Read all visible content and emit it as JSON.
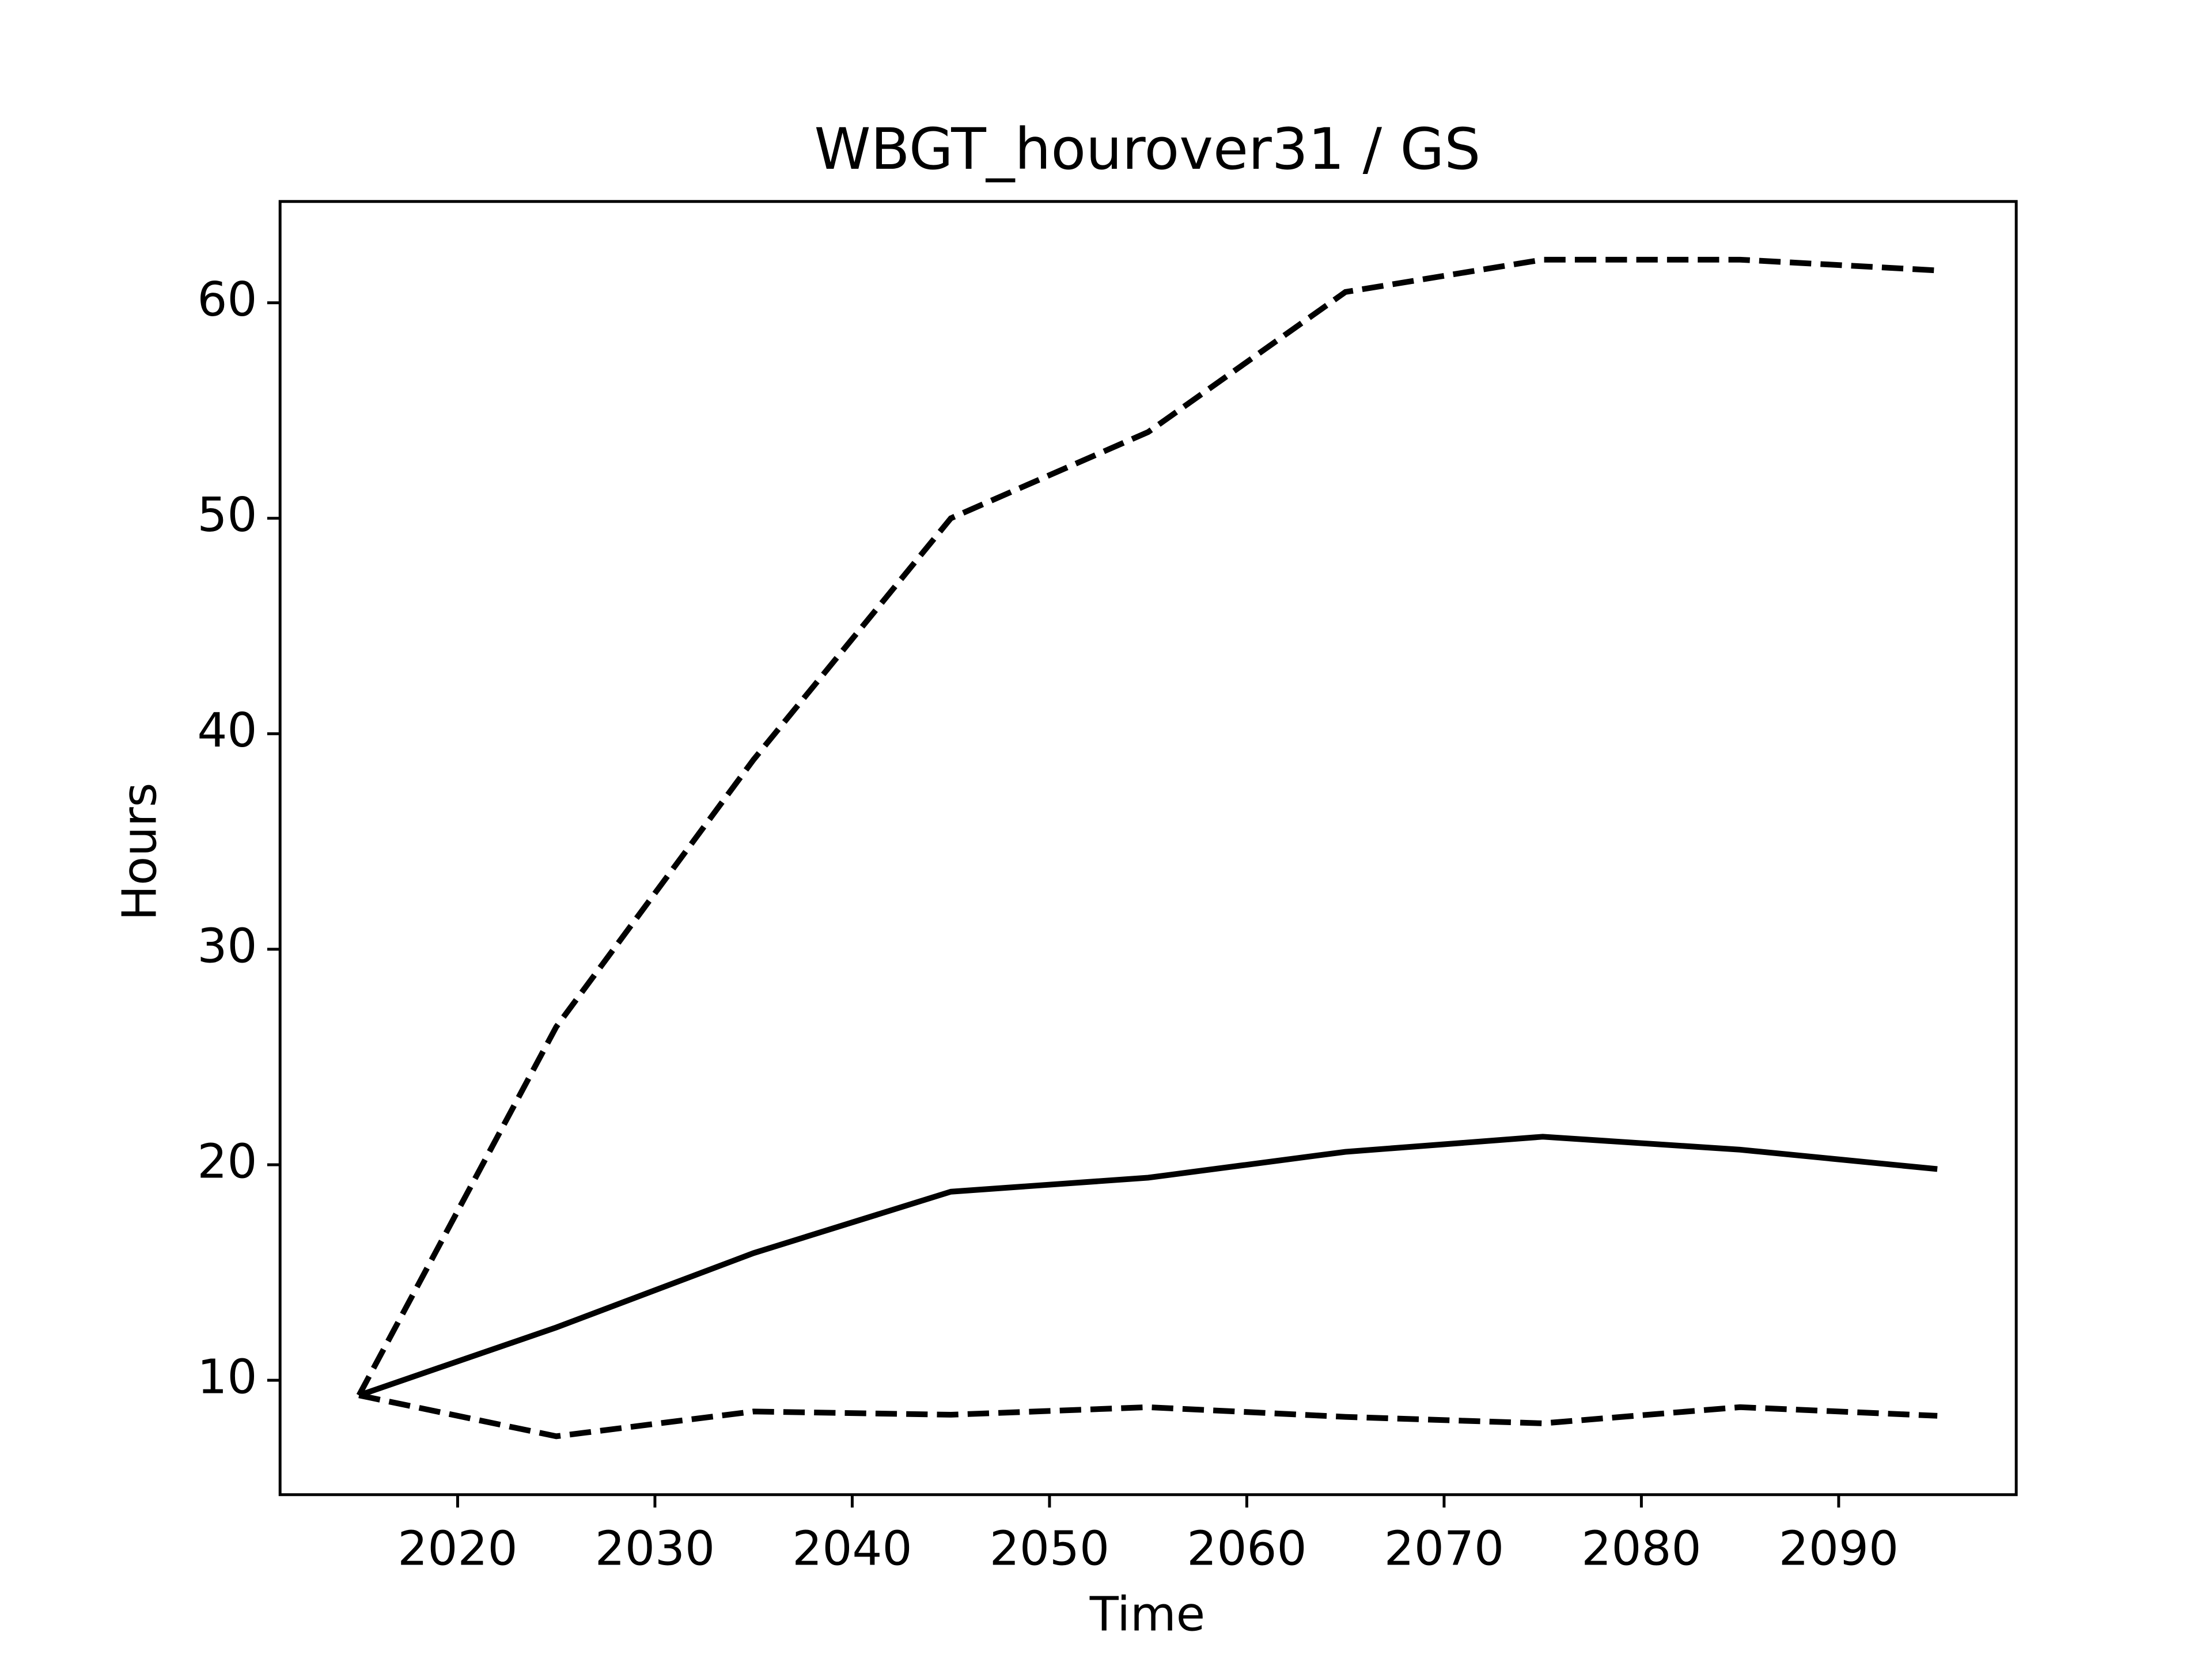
{
  "chart_data": {
    "type": "line",
    "title": "WBGT_hourover31 / GS",
    "x_label": "Time",
    "y_label": "Hours",
    "x": [
      2015,
      2025,
      2035,
      2045,
      2055,
      2065,
      2075,
      2085,
      2095
    ],
    "series": [
      {
        "color": "#000000",
        "linestyle": "solid",
        "values": [
          9.3,
          12.45,
          15.9,
          18.75,
          19.4,
          20.6,
          21.3,
          20.7,
          19.8
        ]
      },
      {
        "color": "#000000",
        "linestyle": "dashed",
        "values": [
          9.3,
          26.4,
          38.8,
          50.0,
          54.0,
          60.5,
          62.0,
          62.0,
          61.5
        ]
      },
      {
        "color": "#000000",
        "linestyle": "dashed",
        "values": [
          9.3,
          7.4,
          8.55,
          8.4,
          8.75,
          8.3,
          8.0,
          8.75,
          8.35
        ]
      }
    ],
    "xlim": [
      2011,
      2099
    ],
    "xticks": [
      2020,
      2030,
      2040,
      2050,
      2060,
      2070,
      2080,
      2090
    ],
    "ylim": [
      4.69,
      64.7
    ],
    "yticks": [
      10,
      20,
      30,
      40,
      50,
      60
    ],
    "grid": false
  }
}
